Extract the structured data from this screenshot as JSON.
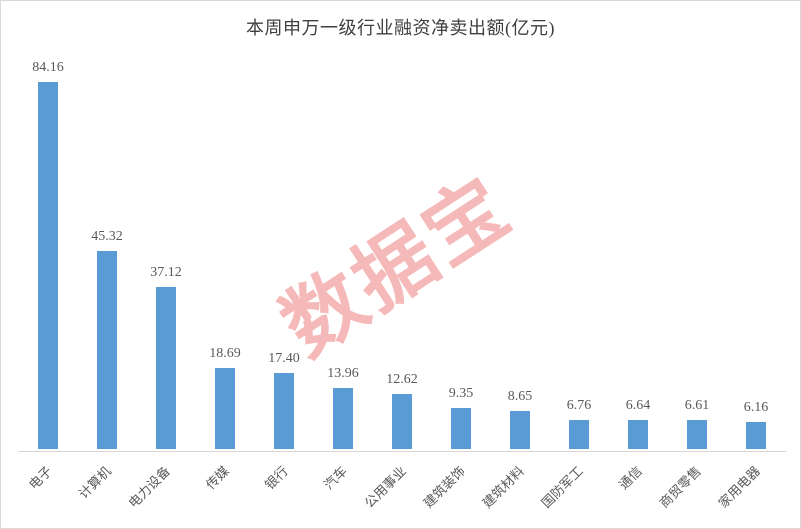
{
  "title": "本周申万一级行业融资净卖出额(亿元)",
  "watermark": {
    "text": "数据宝",
    "color": "rgba(232, 100, 100, 0.45)"
  },
  "chart_data": {
    "type": "bar",
    "title": "本周申万一级行业融资净卖出额(亿元)",
    "categories": [
      "电子",
      "计算机",
      "电力设备",
      "传媒",
      "银行",
      "汽车",
      "公用事业",
      "建筑装饰",
      "建筑材料",
      "国防军工",
      "通信",
      "商贸零售",
      "家用电器"
    ],
    "values": [
      84.16,
      45.32,
      37.12,
      18.69,
      17.4,
      13.96,
      12.62,
      9.35,
      8.65,
      6.76,
      6.64,
      6.61,
      6.16
    ],
    "value_labels": [
      "84.16",
      "45.32",
      "37.12",
      "18.69",
      "17.40",
      "13.96",
      "12.62",
      "9.35",
      "8.65",
      "6.76",
      "6.64",
      "6.61",
      "6.16"
    ],
    "xlabel": "",
    "ylabel": "",
    "ylim": [
      0,
      84.16
    ],
    "grid": false,
    "legend": false,
    "data_labels": true,
    "bar_color": "#5b9bd5",
    "label_color": "#595959",
    "axis_line_color": "#d6d6d6",
    "category_label_rotation_deg": -45
  }
}
